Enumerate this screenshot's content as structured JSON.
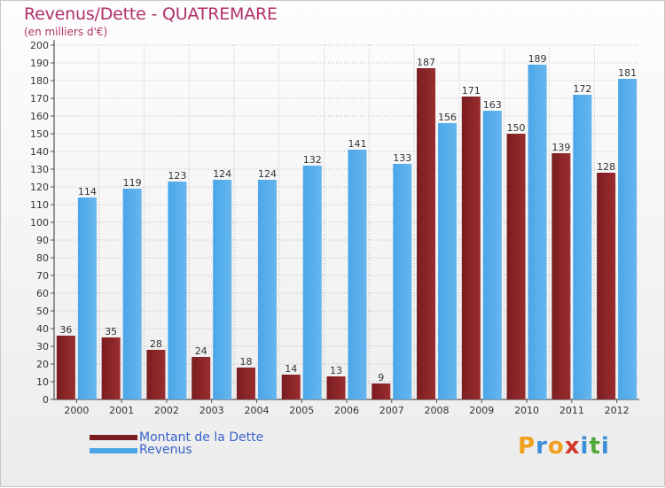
{
  "header": {
    "title": "Revenus/Dette - QUATREMARE",
    "subtitle": "(en milliers d'€)"
  },
  "legend": {
    "dette": "Montant de la Dette",
    "revenus": "Revenus"
  },
  "logo": {
    "text": "Proxiti",
    "letters": [
      "P",
      "r",
      "o",
      "x",
      "i",
      "t",
      "i"
    ],
    "colors": [
      "#f0a01e",
      "#3b8ed8",
      "#f0a01e",
      "#d43a2a",
      "#3b8ed8",
      "#55a83c",
      "#3b8ed8"
    ]
  },
  "colors": {
    "dette": "#7a1d20",
    "dette_light": "#9a2d30",
    "revenus": "#4aa6e8",
    "revenus_light": "#66b6ee",
    "grid": "#bcbcbc"
  },
  "chart_data": {
    "type": "bar",
    "title": "Revenus/Dette - QUATREMARE",
    "subtitle": "(en milliers d'€)",
    "categories": [
      "2000",
      "2001",
      "2002",
      "2003",
      "2004",
      "2005",
      "2006",
      "2007",
      "2008",
      "2009",
      "2010",
      "2011",
      "2012"
    ],
    "series": [
      {
        "name": "Montant de la Dette",
        "values": [
          36,
          35,
          28,
          24,
          18,
          14,
          13,
          9,
          187,
          171,
          150,
          139,
          128
        ]
      },
      {
        "name": "Revenus",
        "values": [
          114,
          119,
          123,
          124,
          124,
          132,
          141,
          133,
          156,
          163,
          189,
          172,
          181
        ]
      }
    ],
    "ylim": [
      0,
      200
    ],
    "ystep": 10,
    "grid": true,
    "legend_position": "bottom-left"
  }
}
